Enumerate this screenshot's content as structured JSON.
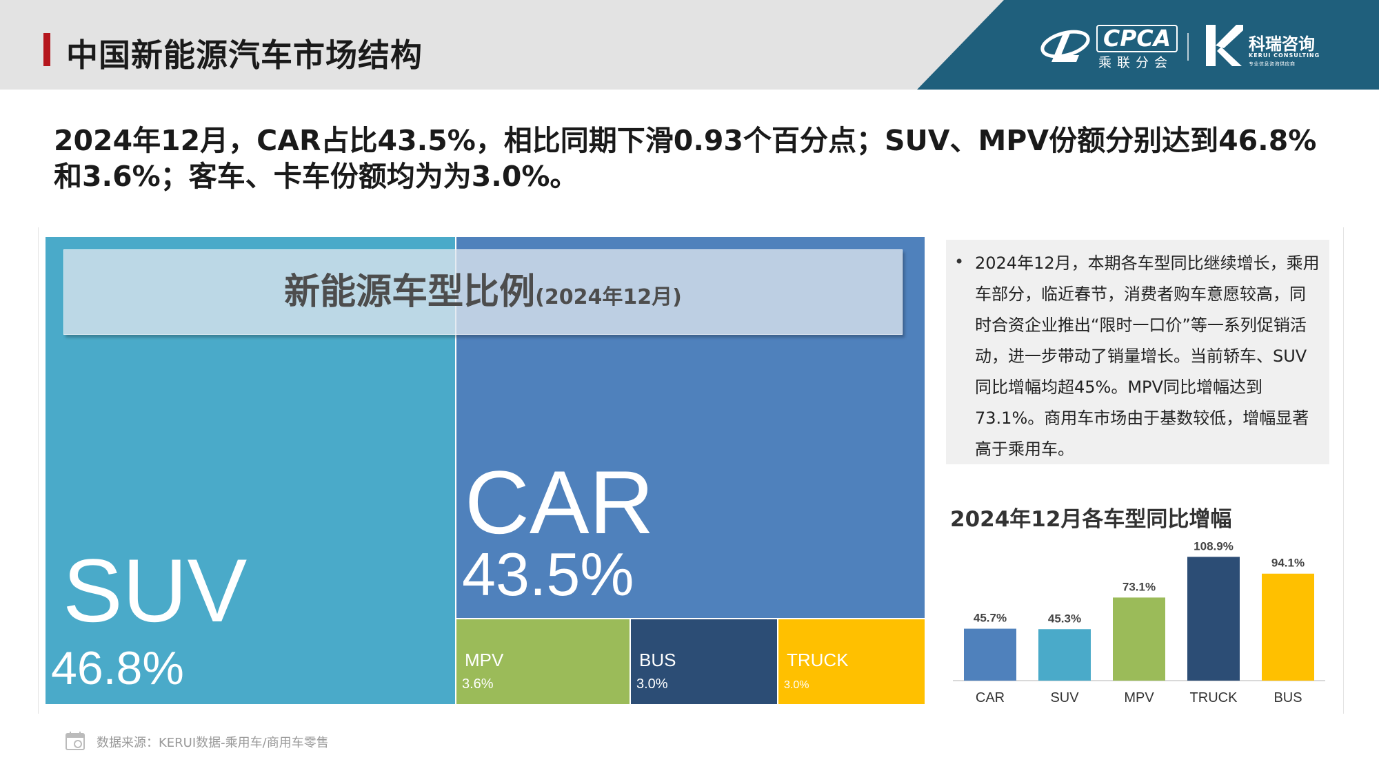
{
  "header": {
    "title": "中国新能源汽车市场结构",
    "logo_cpca_text": "CPCA",
    "logo_cpca_sub": "乘联分会",
    "logo_kerui_cn": "科瑞咨询",
    "logo_kerui_en": "KERUI CONSULTING",
    "logo_kerui_sub": "专业信息咨询供应商"
  },
  "headline": "2024年12月，CAR占比43.5%，相比同期下滑0.93个百分点；SUV、MPV份额分别达到46.8%和3.6%；客车、卡车份额均为为3.0%。",
  "treemap": {
    "title_main": "新能源车型比例",
    "title_sub": "(2024年12月)"
  },
  "note": {
    "bullet": "•",
    "text": "2024年12月，本期各车型同比继续增长，乘用车部分，临近春节，消费者购车意愿较高，同时合资企业推出“限时一口价”等一系列促销活动，进一步带动了销量增长。当前轿车、SUV同比增幅均超45%。MPV同比增幅达到73.1%。商用车市场由于基数较低，增幅显著高于乘用车。"
  },
  "footer": {
    "source": "数据来源：KERUI数据-乘用车/商用车零售"
  },
  "chart_data": [
    {
      "type": "treemap",
      "categories": [
        "SUV",
        "CAR",
        "MPV",
        "BUS",
        "TRUCK"
      ],
      "values": [
        46.8,
        43.5,
        3.6,
        3.0,
        3.0
      ],
      "labels": [
        "46.8%",
        "43.5%",
        "3.6%",
        "3.0%",
        "3.0%"
      ],
      "colors": [
        "#4aaac9",
        "#4f81bc",
        "#9bbb59",
        "#2c4d75",
        "#ffc000"
      ],
      "title": "新能源车型比例(2024年12月)"
    },
    {
      "type": "bar",
      "title": "2024年12月各车型同比增幅",
      "categories": [
        "CAR",
        "SUV",
        "MPV",
        "TRUCK",
        "BUS"
      ],
      "values": [
        45.7,
        45.3,
        73.1,
        108.9,
        94.1
      ],
      "labels": [
        "45.7%",
        "45.3%",
        "73.1%",
        "108.9%",
        "94.1%"
      ],
      "colors": [
        "#4f81bc",
        "#4aaac9",
        "#9bbb59",
        "#2c4d75",
        "#ffc000"
      ],
      "ylim": [
        0,
        120
      ],
      "grid": false,
      "xlabel": "",
      "ylabel": ""
    }
  ]
}
